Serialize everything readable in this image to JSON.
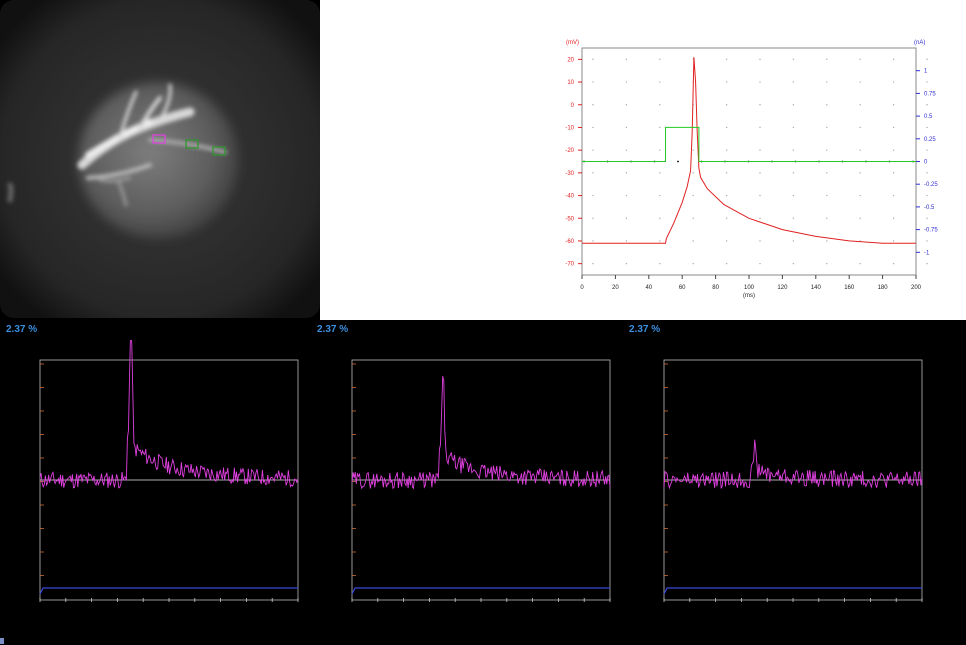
{
  "micrograph": {
    "rois": [
      {
        "color": "#e040e0"
      },
      {
        "color": "#2a9a2a"
      },
      {
        "color": "#2a9a2a"
      }
    ]
  },
  "chart_data": [
    {
      "type": "line",
      "title": "",
      "xlabel": "(ms)",
      "ylabel_left": "(mV)",
      "ylabel_right": "(nA)",
      "xlim": [
        0,
        200
      ],
      "ylim_left": [
        -75,
        25
      ],
      "ylim_right": [
        -1.25,
        1.25
      ],
      "x_ticks": [
        "0",
        "20",
        "40",
        "60",
        "80",
        "100",
        "120",
        "140",
        "160",
        "180",
        "200"
      ],
      "y_left_ticks": [
        "20",
        "10",
        "0",
        "-10",
        "-20",
        "-30",
        "-40",
        "-50",
        "-60",
        "-70"
      ],
      "y_right_ticks": [
        "1",
        "0.75",
        "0.5",
        "0.25",
        "0",
        "-0.25",
        "-0.5",
        "-0.75",
        "-1"
      ],
      "series": [
        {
          "axis": "left",
          "color": "#e02020",
          "x": [
            0,
            50,
            50.5,
            55,
            60,
            63,
            65,
            66,
            67,
            68,
            69,
            70,
            71,
            75,
            85,
            100,
            120,
            140,
            160,
            180,
            200
          ],
          "y": [
            -61,
            -61,
            -59,
            -52,
            -43,
            -36,
            -29,
            -12,
            21,
            10,
            -12,
            -28,
            -32,
            -37,
            -44,
            -50,
            -55,
            -58,
            -60,
            -61,
            -61
          ]
        },
        {
          "axis": "right",
          "color": "#22cc22",
          "x": [
            0,
            50,
            50,
            70,
            70,
            200
          ],
          "y": [
            0,
            0,
            0.375,
            0.375,
            0,
            0
          ]
        }
      ],
      "grid": "dotted"
    },
    {
      "type": "line",
      "label": "2.37 %",
      "peak_x": 0.35,
      "peak": 0.9,
      "decay": 0.12,
      "late": 0.18,
      "noise": 0.07,
      "seed": 11,
      "color": "#e040e0"
    },
    {
      "type": "line",
      "label": "2.37 %",
      "peak_x": 0.35,
      "peak": 0.58,
      "decay": 0.12,
      "late": 0.1,
      "noise": 0.07,
      "seed": 29,
      "color": "#e040e0"
    },
    {
      "type": "line",
      "label": "2.37 %",
      "peak_x": 0.35,
      "peak": 0.18,
      "decay": 0.06,
      "late": 0.03,
      "noise": 0.07,
      "seed": 47,
      "color": "#e040e0"
    }
  ]
}
